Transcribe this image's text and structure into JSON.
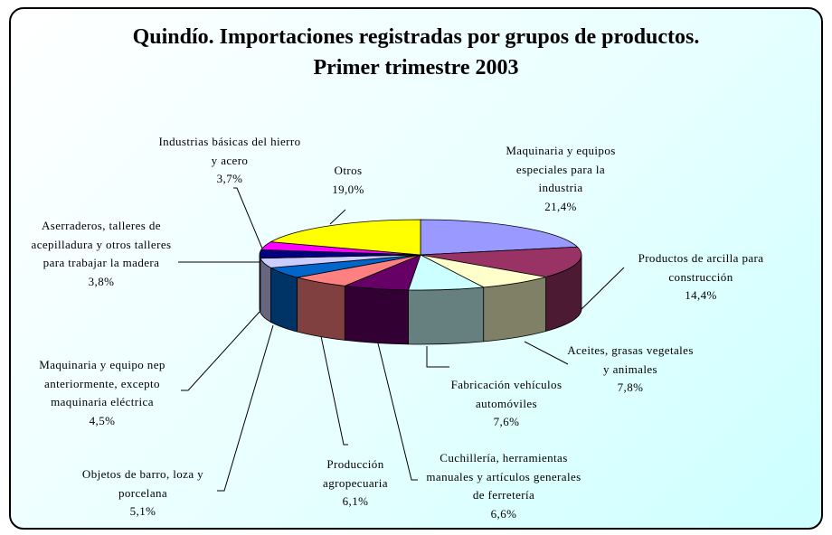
{
  "chart_data": {
    "type": "pie",
    "title": "Quindío. Importaciones registradas por grupos de productos. Primer trimestre 2003",
    "categories": [
      "Maquinaria y equipos especiales para la industria",
      "Productos de arcilla para construcción",
      "Aceites, grasas vegetales y animales",
      "Fabricación vehículos automóviles",
      "Cuchillería, herramientas manuales y artículos generales de ferretería",
      "Producción agropecuaria",
      "Objetos de barro, loza y porcelana",
      "Maquinaria y equipo nep anteriormente, excepto maquinaria eléctrica",
      "Aserraderos, talleres de acepilladura y otros talleres para trabajar la madera",
      "Industrias básicas del hierro y acero",
      "Otros"
    ],
    "values": [
      21.4,
      14.4,
      7.8,
      7.6,
      6.6,
      6.1,
      5.1,
      4.5,
      3.8,
      3.7,
      19.0
    ],
    "value_labels": [
      "21,4%",
      "14,4%",
      "7,8%",
      "7,6%",
      "6,6%",
      "6,1%",
      "5,1%",
      "4,5%",
      "3,8%",
      "3,7%",
      "19,0%"
    ],
    "colors": [
      "#9999ff",
      "#993366",
      "#ffffcc",
      "#ccffff",
      "#660066",
      "#ff8080",
      "#0066cc",
      "#ccccff",
      "#000080",
      "#ff00ff",
      "#ffff00"
    ]
  }
}
